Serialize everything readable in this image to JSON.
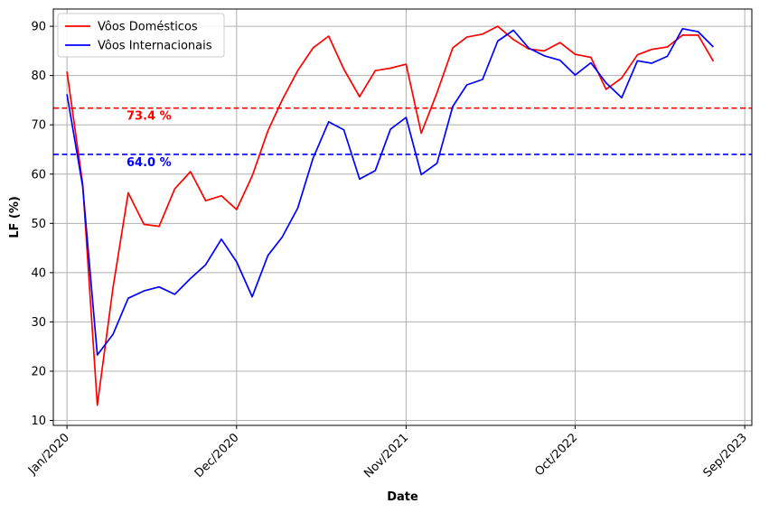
{
  "chart_data": {
    "type": "line",
    "xlabel": "Date",
    "ylabel": "LF (%)",
    "ylim": [
      9,
      93.5
    ],
    "xlim": [
      "2019-12-05",
      "2023-09-15"
    ],
    "grid": true,
    "legend_position": "top-left",
    "x_ticks": [
      {
        "date": "2020-01-01",
        "label": "Jan/2020"
      },
      {
        "date": "2020-12-01",
        "label": "Dec/2020"
      },
      {
        "date": "2021-11-01",
        "label": "Nov/2021"
      },
      {
        "date": "2022-10-01",
        "label": "Oct/2022"
      },
      {
        "date": "2023-09-01",
        "label": "Sep/2023"
      }
    ],
    "y_ticks": [
      10,
      20,
      30,
      40,
      50,
      60,
      70,
      80,
      90
    ],
    "x": [
      "2020-01-01",
      "2020-02-01",
      "2020-03-01",
      "2020-04-01",
      "2020-05-01",
      "2020-06-01",
      "2020-07-01",
      "2020-08-01",
      "2020-09-01",
      "2020-10-01",
      "2020-11-01",
      "2020-12-01",
      "2021-01-01",
      "2021-02-01",
      "2021-03-01",
      "2021-04-01",
      "2021-05-01",
      "2021-06-01",
      "2021-07-01",
      "2021-08-01",
      "2021-09-01",
      "2021-10-01",
      "2021-11-01",
      "2021-12-01",
      "2022-01-01",
      "2022-02-01",
      "2022-03-01",
      "2022-04-01",
      "2022-05-01",
      "2022-06-01",
      "2022-07-01",
      "2022-08-01",
      "2022-09-01",
      "2022-10-01",
      "2022-11-01",
      "2022-12-01",
      "2023-01-01",
      "2023-02-01",
      "2023-03-01",
      "2023-04-01",
      "2023-05-01",
      "2023-06-01",
      "2023-07-01",
      "2023-08-01"
    ],
    "series": [
      {
        "name": "Vôos Domésticos",
        "color": "#ff0000",
        "values": [
          80.8,
          58.0,
          13.1,
          37.0,
          56.2,
          49.8,
          49.4,
          57.0,
          60.5,
          54.6,
          55.6,
          52.8,
          59.6,
          68.8,
          75.0,
          81.0,
          85.6,
          88.0,
          81.3,
          75.7,
          81.0,
          81.5,
          82.3,
          68.3,
          76.5,
          85.6,
          87.8,
          88.4,
          90.0,
          87.3,
          85.4,
          85.0,
          86.7,
          84.3,
          83.7,
          77.2,
          79.5,
          84.2,
          85.3,
          85.8,
          88.2,
          88.2,
          82.9,
          null
        ]
      },
      {
        "name": "Vôos Internacionais",
        "color": "#0000ff",
        "values": [
          76.2,
          57.5,
          23.3,
          27.5,
          34.8,
          36.3,
          37.1,
          35.6,
          38.8,
          41.6,
          46.8,
          42.2,
          35.1,
          43.5,
          47.2,
          53.1,
          63.2,
          70.6,
          69.0,
          59.0,
          60.7,
          69.1,
          71.5,
          59.9,
          62.2,
          73.7,
          78.1,
          79.2,
          87.0,
          89.2,
          85.6,
          84.0,
          83.1,
          80.1,
          82.6,
          78.5,
          75.5,
          83.0,
          82.5,
          83.9,
          89.5,
          88.9,
          85.8,
          null
        ]
      }
    ],
    "reference_lines": [
      {
        "value": 73.4,
        "label": "73.4 %",
        "color": "#ff0000"
      },
      {
        "value": 64.0,
        "label": "64.0 %",
        "color": "#0000ff"
      }
    ]
  }
}
